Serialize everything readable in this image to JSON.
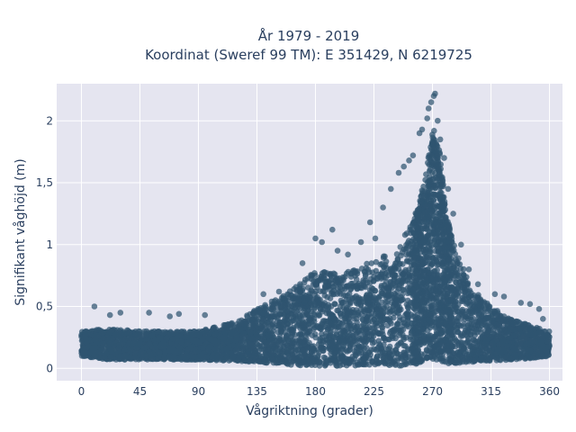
{
  "chart_data": {
    "type": "scatter",
    "title_line1": "År 1979 - 2019",
    "title_line2": "Koordinat (Sweref 99 TM): E 351429, N 6219725",
    "xlabel": "Vågriktning (grader)",
    "ylabel": "Signifikant våghöjd (m)",
    "xlim": [
      -19,
      370
    ],
    "ylim": [
      -0.1,
      2.3
    ],
    "xticks": [
      0,
      45,
      90,
      135,
      180,
      225,
      270,
      315,
      360
    ],
    "xtick_labels": [
      "0",
      "45",
      "90",
      "135",
      "180",
      "225",
      "270",
      "315",
      "360"
    ],
    "yticks": [
      0,
      0.5,
      1,
      1.5,
      2
    ],
    "ytick_labels": [
      "0",
      "0,5",
      "1",
      "1,5",
      "2"
    ],
    "grid": true,
    "marker_color": "#2f5470",
    "background_color": "#e5e5f0",
    "envelope": {
      "x": [
        0,
        20,
        45,
        90,
        120,
        135,
        150,
        160,
        170,
        180,
        190,
        200,
        210,
        225,
        240,
        250,
        255,
        260,
        263,
        266,
        268,
        270,
        272,
        275,
        278,
        281,
        285,
        290,
        300,
        315,
        330,
        345,
        360
      ],
      "y_low": [
        0.1,
        0.07,
        0.07,
        0.07,
        0.06,
        0.05,
        0.04,
        0.03,
        0.02,
        0.02,
        0.02,
        0.02,
        0.02,
        0.02,
        0.02,
        0.02,
        0.03,
        0.04,
        0.05,
        0.06,
        0.07,
        0.07,
        0.07,
        0.06,
        0.05,
        0.04,
        0.04,
        0.04,
        0.05,
        0.06,
        0.07,
        0.08,
        0.1
      ],
      "y_high": [
        0.3,
        0.32,
        0.3,
        0.3,
        0.38,
        0.48,
        0.56,
        0.63,
        0.7,
        0.8,
        0.78,
        0.76,
        0.8,
        0.88,
        0.95,
        1.1,
        1.2,
        1.35,
        1.5,
        1.65,
        1.8,
        1.9,
        1.95,
        1.8,
        1.55,
        1.25,
        1.05,
        0.9,
        0.65,
        0.5,
        0.4,
        0.35,
        0.3
      ]
    },
    "outliers": [
      {
        "x": 10,
        "y": 0.5
      },
      {
        "x": 22,
        "y": 0.43
      },
      {
        "x": 30,
        "y": 0.45
      },
      {
        "x": 52,
        "y": 0.45
      },
      {
        "x": 68,
        "y": 0.42
      },
      {
        "x": 75,
        "y": 0.44
      },
      {
        "x": 95,
        "y": 0.43
      },
      {
        "x": 140,
        "y": 0.6
      },
      {
        "x": 152,
        "y": 0.62
      },
      {
        "x": 170,
        "y": 0.85
      },
      {
        "x": 180,
        "y": 1.05
      },
      {
        "x": 185,
        "y": 1.02
      },
      {
        "x": 193,
        "y": 1.12
      },
      {
        "x": 197,
        "y": 0.95
      },
      {
        "x": 205,
        "y": 0.92
      },
      {
        "x": 215,
        "y": 1.02
      },
      {
        "x": 222,
        "y": 1.18
      },
      {
        "x": 226,
        "y": 1.05
      },
      {
        "x": 232,
        "y": 1.3
      },
      {
        "x": 238,
        "y": 1.45
      },
      {
        "x": 244,
        "y": 1.58
      },
      {
        "x": 248,
        "y": 1.63
      },
      {
        "x": 252,
        "y": 1.68
      },
      {
        "x": 255,
        "y": 1.72
      },
      {
        "x": 260,
        "y": 1.9
      },
      {
        "x": 262,
        "y": 1.93
      },
      {
        "x": 266,
        "y": 2.02
      },
      {
        "x": 267,
        "y": 2.1
      },
      {
        "x": 269,
        "y": 2.15
      },
      {
        "x": 271,
        "y": 2.2
      },
      {
        "x": 272,
        "y": 2.22
      },
      {
        "x": 274,
        "y": 2.0
      },
      {
        "x": 276,
        "y": 1.85
      },
      {
        "x": 279,
        "y": 1.7
      },
      {
        "x": 282,
        "y": 1.45
      },
      {
        "x": 286,
        "y": 1.25
      },
      {
        "x": 292,
        "y": 1.0
      },
      {
        "x": 298,
        "y": 0.8
      },
      {
        "x": 305,
        "y": 0.68
      },
      {
        "x": 318,
        "y": 0.6
      },
      {
        "x": 325,
        "y": 0.58
      },
      {
        "x": 338,
        "y": 0.53
      },
      {
        "x": 345,
        "y": 0.52
      },
      {
        "x": 352,
        "y": 0.48
      },
      {
        "x": 355,
        "y": 0.4
      }
    ]
  }
}
